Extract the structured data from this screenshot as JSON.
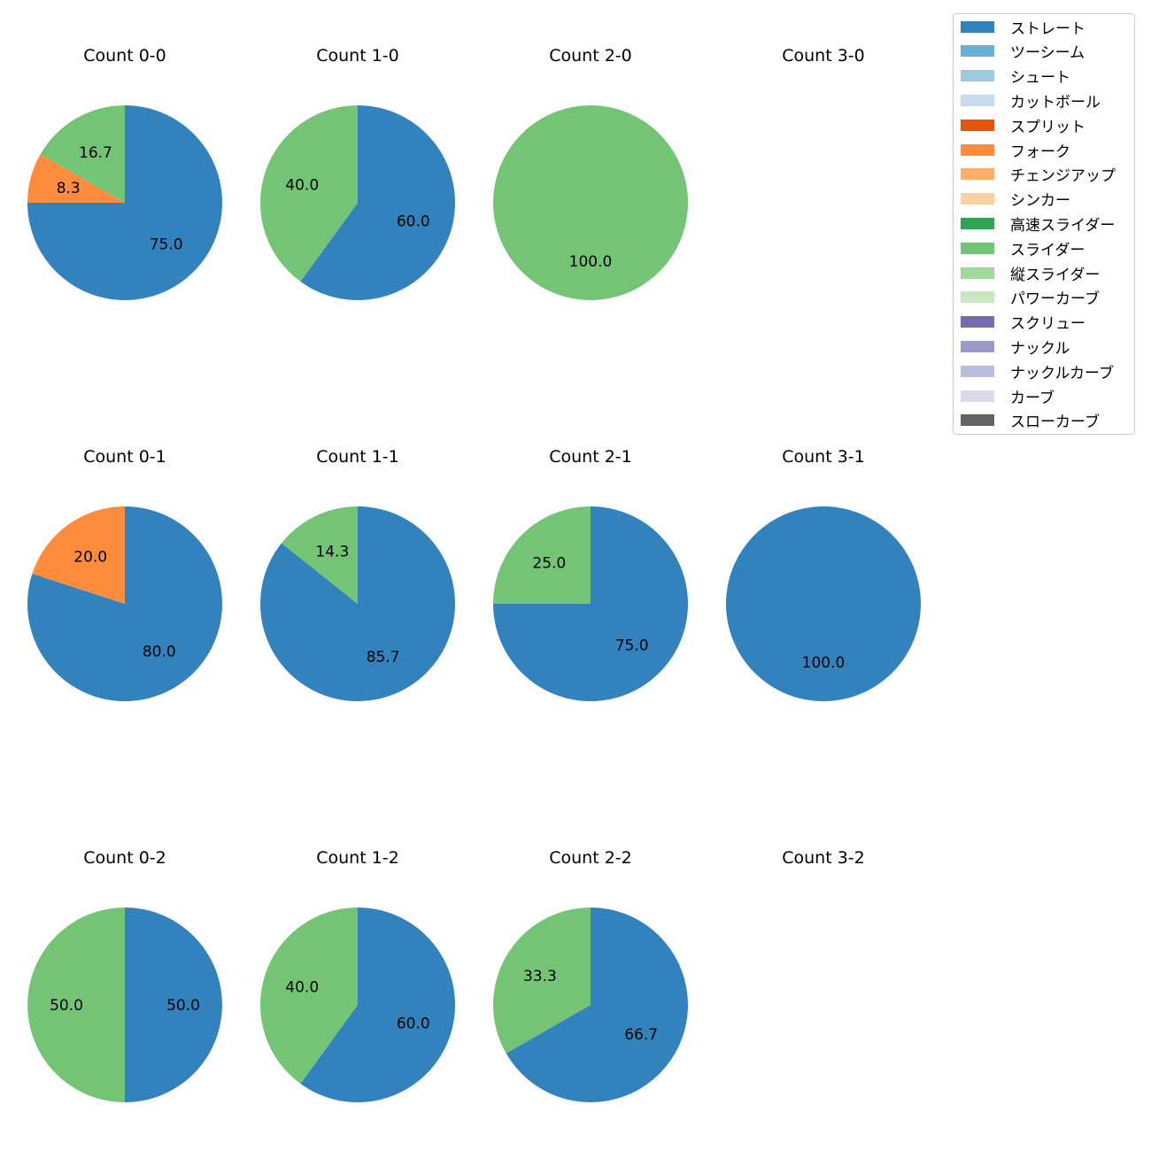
{
  "chart_data": {
    "type": "pie",
    "layout": "grid of pie charts, 3 rows (strikes 0-2) by 4 columns (balls 0-3), legend at top-right",
    "legend": [
      {
        "name": "ストレート",
        "color": "#3182bd"
      },
      {
        "name": "ツーシーム",
        "color": "#6baed6"
      },
      {
        "name": "シュート",
        "color": "#9ecae1"
      },
      {
        "name": "カットボール",
        "color": "#c6dbef"
      },
      {
        "name": "スプリット",
        "color": "#e6550d"
      },
      {
        "name": "フォーク",
        "color": "#fd8d3c"
      },
      {
        "name": "チェンジアップ",
        "color": "#fdae6b"
      },
      {
        "name": "シンカー",
        "color": "#fdd0a2"
      },
      {
        "name": "高速スライダー",
        "color": "#31a354"
      },
      {
        "name": "スライダー",
        "color": "#74c476"
      },
      {
        "name": "縦スライダー",
        "color": "#a1d99b"
      },
      {
        "name": "パワーカーブ",
        "color": "#c7e9c0"
      },
      {
        "name": "スクリュー",
        "color": "#756bb1"
      },
      {
        "name": "ナックル",
        "color": "#9e9ac8"
      },
      {
        "name": "ナックルカーブ",
        "color": "#bcbddc"
      },
      {
        "name": "カーブ",
        "color": "#dadaeb"
      },
      {
        "name": "スローカーブ",
        "color": "#636363"
      }
    ],
    "charts": [
      {
        "title": "Count 0-0",
        "slices": [
          {
            "name": "ストレート",
            "value": 75.0,
            "label": "75.0"
          },
          {
            "name": "フォーク",
            "value": 8.3,
            "label": "8.3"
          },
          {
            "name": "スライダー",
            "value": 16.7,
            "label": "16.7"
          }
        ]
      },
      {
        "title": "Count 1-0",
        "slices": [
          {
            "name": "ストレート",
            "value": 60.0,
            "label": "60.0"
          },
          {
            "name": "スライダー",
            "value": 40.0,
            "label": "40.0"
          }
        ]
      },
      {
        "title": "Count 2-0",
        "slices": [
          {
            "name": "スライダー",
            "value": 100.0,
            "label": "100.0"
          }
        ]
      },
      {
        "title": "Count 3-0",
        "slices": []
      },
      {
        "title": "Count 0-1",
        "slices": [
          {
            "name": "ストレート",
            "value": 80.0,
            "label": "80.0"
          },
          {
            "name": "フォーク",
            "value": 20.0,
            "label": "20.0"
          }
        ]
      },
      {
        "title": "Count 1-1",
        "slices": [
          {
            "name": "ストレート",
            "value": 85.7,
            "label": "85.7"
          },
          {
            "name": "スライダー",
            "value": 14.3,
            "label": "14.3"
          }
        ]
      },
      {
        "title": "Count 2-1",
        "slices": [
          {
            "name": "ストレート",
            "value": 75.0,
            "label": "75.0"
          },
          {
            "name": "スライダー",
            "value": 25.0,
            "label": "25.0"
          }
        ]
      },
      {
        "title": "Count 3-1",
        "slices": [
          {
            "name": "ストレート",
            "value": 100.0,
            "label": "100.0"
          }
        ]
      },
      {
        "title": "Count 0-2",
        "slices": [
          {
            "name": "ストレート",
            "value": 50.0,
            "label": "50.0"
          },
          {
            "name": "スライダー",
            "value": 50.0,
            "label": "50.0"
          }
        ]
      },
      {
        "title": "Count 1-2",
        "slices": [
          {
            "name": "ストレート",
            "value": 60.0,
            "label": "60.0"
          },
          {
            "name": "スライダー",
            "value": 40.0,
            "label": "40.0"
          }
        ]
      },
      {
        "title": "Count 2-2",
        "slices": [
          {
            "name": "ストレート",
            "value": 66.7,
            "label": "66.7"
          },
          {
            "name": "スライダー",
            "value": 33.3,
            "label": "33.3"
          }
        ]
      },
      {
        "title": "Count 3-2",
        "slices": []
      }
    ]
  }
}
